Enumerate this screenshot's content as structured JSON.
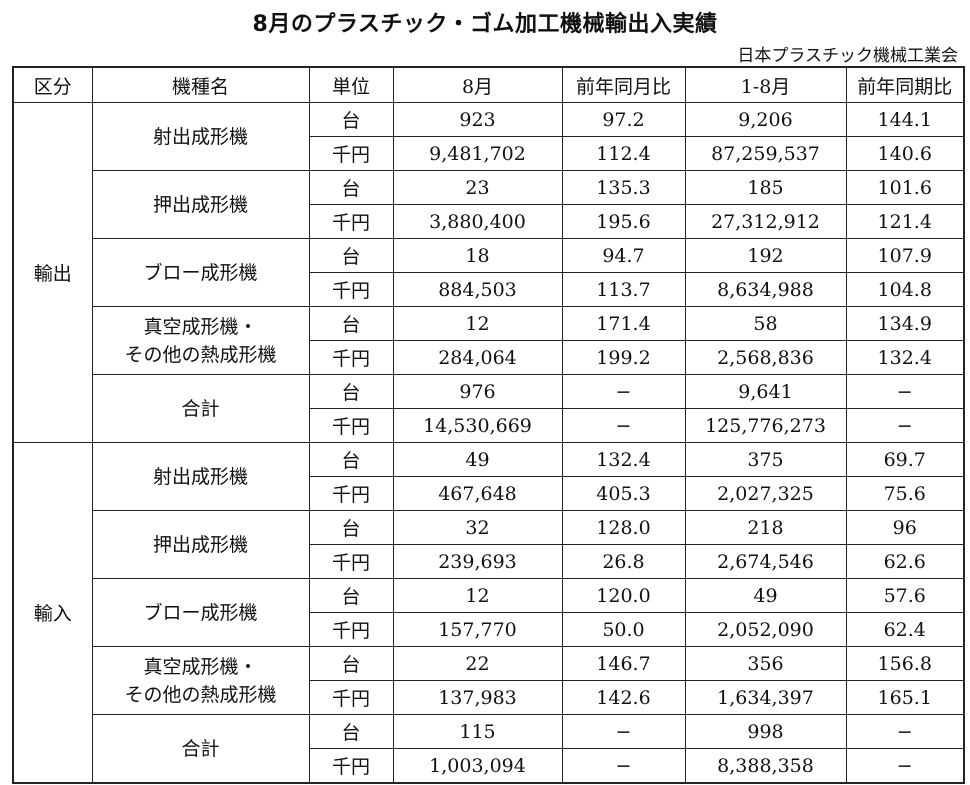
{
  "title": "8月のプラスチック・ゴム加工機械輸出入実績",
  "source": "日本プラスチック機械工業会",
  "headers": [
    "区分",
    "機種名",
    "単位",
    "8月",
    "前年同月比",
    "1-8月",
    "前年同期比"
  ],
  "sections": [
    {
      "label": "輸出",
      "groups": [
        {
          "name_lines": [
            "射出成形機"
          ],
          "rows": [
            {
              "unit": "台",
              "month": "923",
              "mom": "97.2",
              "ytd": "9,206",
              "yoy": "144.1"
            },
            {
              "unit": "千円",
              "month": "9,481,702",
              "mom": "112.4",
              "ytd": "87,259,537",
              "yoy": "140.6"
            }
          ]
        },
        {
          "name_lines": [
            "押出成形機"
          ],
          "rows": [
            {
              "unit": "台",
              "month": "23",
              "mom": "135.3",
              "ytd": "185",
              "yoy": "101.6"
            },
            {
              "unit": "千円",
              "month": "3,880,400",
              "mom": "195.6",
              "ytd": "27,312,912",
              "yoy": "121.4"
            }
          ]
        },
        {
          "name_lines": [
            "ブロー成形機"
          ],
          "rows": [
            {
              "unit": "台",
              "month": "18",
              "mom": "94.7",
              "ytd": "192",
              "yoy": "107.9"
            },
            {
              "unit": "千円",
              "month": "884,503",
              "mom": "113.7",
              "ytd": "8,634,988",
              "yoy": "104.8"
            }
          ]
        },
        {
          "name_lines": [
            "真空成形機・",
            "その他の熱成形機"
          ],
          "rows": [
            {
              "unit": "台",
              "month": "12",
              "mom": "171.4",
              "ytd": "58",
              "yoy": "134.9"
            },
            {
              "unit": "千円",
              "month": "284,064",
              "mom": "199.2",
              "ytd": "2,568,836",
              "yoy": "132.4"
            }
          ]
        },
        {
          "name_lines": [
            "合計"
          ],
          "rows": [
            {
              "unit": "台",
              "month": "976",
              "mom": "−",
              "ytd": "9,641",
              "yoy": "−"
            },
            {
              "unit": "千円",
              "month": "14,530,669",
              "mom": "−",
              "ytd": "125,776,273",
              "yoy": "−"
            }
          ]
        }
      ]
    },
    {
      "label": "輸入",
      "groups": [
        {
          "name_lines": [
            "射出成形機"
          ],
          "rows": [
            {
              "unit": "台",
              "month": "49",
              "mom": "132.4",
              "ytd": "375",
              "yoy": "69.7"
            },
            {
              "unit": "千円",
              "month": "467,648",
              "mom": "405.3",
              "ytd": "2,027,325",
              "yoy": "75.6"
            }
          ]
        },
        {
          "name_lines": [
            "押出成形機"
          ],
          "rows": [
            {
              "unit": "台",
              "month": "32",
              "mom": "128.0",
              "ytd": "218",
              "yoy": "96"
            },
            {
              "unit": "千円",
              "month": "239,693",
              "mom": "26.8",
              "ytd": "2,674,546",
              "yoy": "62.6"
            }
          ]
        },
        {
          "name_lines": [
            "ブロー成形機"
          ],
          "rows": [
            {
              "unit": "台",
              "month": "12",
              "mom": "120.0",
              "ytd": "49",
              "yoy": "57.6"
            },
            {
              "unit": "千円",
              "month": "157,770",
              "mom": "50.0",
              "ytd": "2,052,090",
              "yoy": "62.4"
            }
          ]
        },
        {
          "name_lines": [
            "真空成形機・",
            "その他の熱成形機"
          ],
          "rows": [
            {
              "unit": "台",
              "month": "22",
              "mom": "146.7",
              "ytd": "356",
              "yoy": "156.8"
            },
            {
              "unit": "千円",
              "month": "137,983",
              "mom": "142.6",
              "ytd": "1,634,397",
              "yoy": "165.1"
            }
          ]
        },
        {
          "name_lines": [
            "合計"
          ],
          "rows": [
            {
              "unit": "台",
              "month": "115",
              "mom": "−",
              "ytd": "998",
              "yoy": "−"
            },
            {
              "unit": "千円",
              "month": "1,003,094",
              "mom": "−",
              "ytd": "8,388,358",
              "yoy": "−"
            }
          ]
        }
      ]
    }
  ]
}
